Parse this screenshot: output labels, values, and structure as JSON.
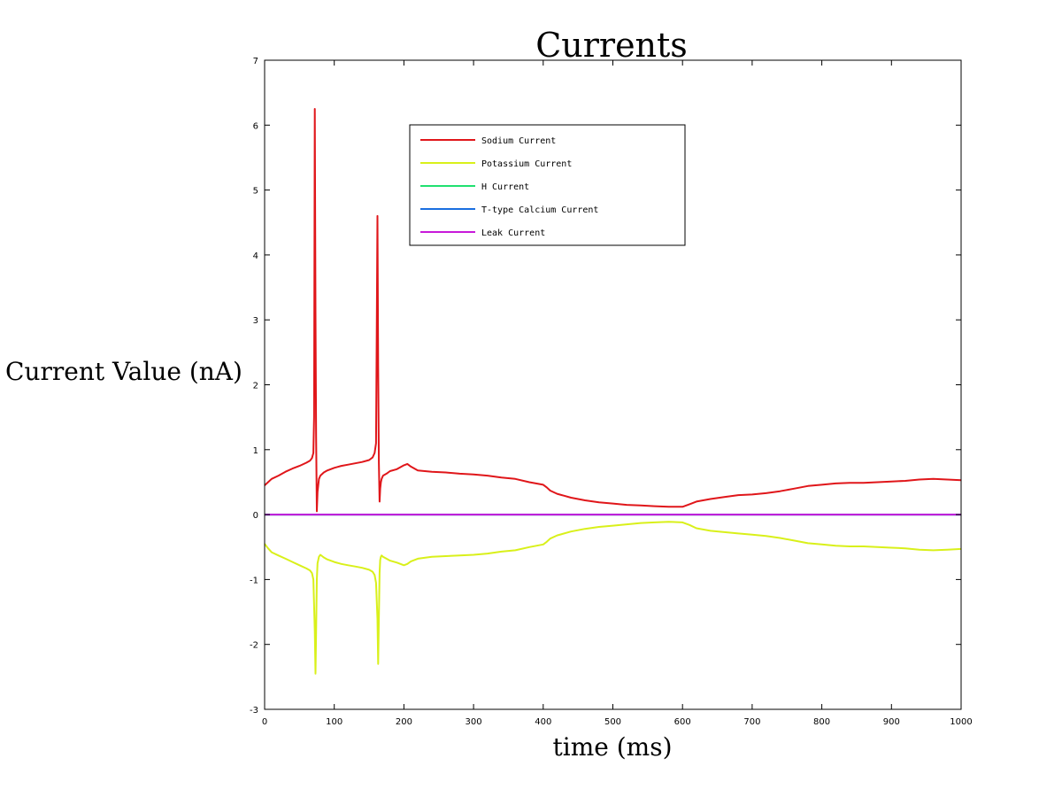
{
  "chart_data": {
    "type": "line",
    "title": "Currents",
    "xlabel": "time (ms)",
    "ylabel": "Current Value (nA)",
    "xlim": [
      0,
      1000
    ],
    "ylim": [
      -3,
      7
    ],
    "xticks": [
      0,
      100,
      200,
      300,
      400,
      500,
      600,
      700,
      800,
      900,
      1000
    ],
    "yticks": [
      -3,
      -2,
      -1,
      0,
      1,
      2,
      3,
      4,
      5,
      6,
      7
    ],
    "grid": false,
    "legend_position": "top-center",
    "series": [
      {
        "name": "Sodium Current",
        "color": "#e0161a",
        "x": [
          0,
          5,
          10,
          20,
          30,
          40,
          50,
          60,
          65,
          68,
          70,
          71,
          72,
          73,
          74,
          75,
          76,
          78,
          80,
          85,
          90,
          100,
          110,
          120,
          130,
          140,
          150,
          155,
          158,
          160,
          161,
          162,
          163,
          164,
          165,
          166,
          167,
          168,
          170,
          175,
          180,
          190,
          200,
          205,
          210,
          220,
          240,
          260,
          280,
          300,
          320,
          340,
          360,
          380,
          400,
          405,
          410,
          420,
          440,
          460,
          480,
          500,
          520,
          540,
          560,
          580,
          600,
          610,
          620,
          640,
          660,
          680,
          700,
          720,
          740,
          760,
          780,
          800,
          820,
          840,
          860,
          880,
          900,
          920,
          940,
          960,
          980,
          1000
        ],
        "y": [
          0.45,
          0.5,
          0.55,
          0.6,
          0.66,
          0.71,
          0.75,
          0.8,
          0.83,
          0.87,
          0.95,
          1.5,
          6.25,
          3.1,
          1.2,
          0.05,
          0.35,
          0.55,
          0.6,
          0.65,
          0.68,
          0.72,
          0.75,
          0.77,
          0.79,
          0.81,
          0.84,
          0.88,
          0.95,
          1.1,
          2.8,
          4.6,
          2.3,
          0.8,
          0.2,
          0.4,
          0.5,
          0.55,
          0.6,
          0.63,
          0.67,
          0.7,
          0.76,
          0.78,
          0.74,
          0.68,
          0.66,
          0.65,
          0.63,
          0.62,
          0.6,
          0.57,
          0.55,
          0.5,
          0.46,
          0.42,
          0.37,
          0.32,
          0.26,
          0.22,
          0.19,
          0.17,
          0.15,
          0.14,
          0.13,
          0.12,
          0.12,
          0.16,
          0.2,
          0.24,
          0.27,
          0.3,
          0.31,
          0.33,
          0.36,
          0.4,
          0.44,
          0.46,
          0.48,
          0.49,
          0.49,
          0.5,
          0.51,
          0.52,
          0.54,
          0.55,
          0.54,
          0.53
        ]
      },
      {
        "name": "Potassium Current",
        "color": "#d9f01a",
        "x": [
          0,
          5,
          10,
          20,
          30,
          40,
          50,
          60,
          65,
          68,
          70,
          72,
          73,
          74,
          75,
          76,
          78,
          80,
          85,
          90,
          100,
          110,
          120,
          130,
          140,
          150,
          155,
          158,
          160,
          162,
          163,
          164,
          165,
          166,
          167,
          168,
          170,
          175,
          180,
          190,
          200,
          205,
          210,
          220,
          240,
          260,
          280,
          300,
          320,
          340,
          360,
          380,
          400,
          405,
          410,
          420,
          440,
          460,
          480,
          500,
          520,
          540,
          560,
          580,
          600,
          610,
          620,
          640,
          660,
          680,
          700,
          720,
          740,
          760,
          780,
          800,
          820,
          840,
          860,
          880,
          900,
          920,
          940,
          960,
          980,
          1000
        ],
        "y": [
          -0.45,
          -0.52,
          -0.58,
          -0.63,
          -0.68,
          -0.73,
          -0.78,
          -0.83,
          -0.86,
          -0.9,
          -1.0,
          -1.8,
          -2.45,
          -1.8,
          -1.0,
          -0.75,
          -0.65,
          -0.62,
          -0.66,
          -0.69,
          -0.73,
          -0.76,
          -0.78,
          -0.8,
          -0.82,
          -0.85,
          -0.88,
          -0.93,
          -1.05,
          -1.6,
          -2.3,
          -1.6,
          -0.9,
          -0.7,
          -0.65,
          -0.63,
          -0.65,
          -0.68,
          -0.71,
          -0.74,
          -0.78,
          -0.76,
          -0.72,
          -0.68,
          -0.65,
          -0.64,
          -0.63,
          -0.62,
          -0.6,
          -0.57,
          -0.55,
          -0.5,
          -0.46,
          -0.42,
          -0.37,
          -0.32,
          -0.26,
          -0.22,
          -0.19,
          -0.17,
          -0.15,
          -0.13,
          -0.12,
          -0.11,
          -0.12,
          -0.16,
          -0.21,
          -0.25,
          -0.27,
          -0.29,
          -0.31,
          -0.33,
          -0.36,
          -0.4,
          -0.44,
          -0.46,
          -0.48,
          -0.49,
          -0.49,
          -0.5,
          -0.51,
          -0.52,
          -0.54,
          -0.55,
          -0.54,
          -0.53
        ]
      },
      {
        "name": "H Current",
        "color": "#20e070",
        "x": [
          0,
          1000
        ],
        "y": [
          0,
          0
        ]
      },
      {
        "name": "T-type Calcium Current",
        "color": "#1a6ee0",
        "x": [
          0,
          1000
        ],
        "y": [
          0,
          0
        ]
      },
      {
        "name": "Leak Current",
        "color": "#c81ad9",
        "x": [
          0,
          1000
        ],
        "y": [
          0,
          0
        ]
      }
    ]
  }
}
